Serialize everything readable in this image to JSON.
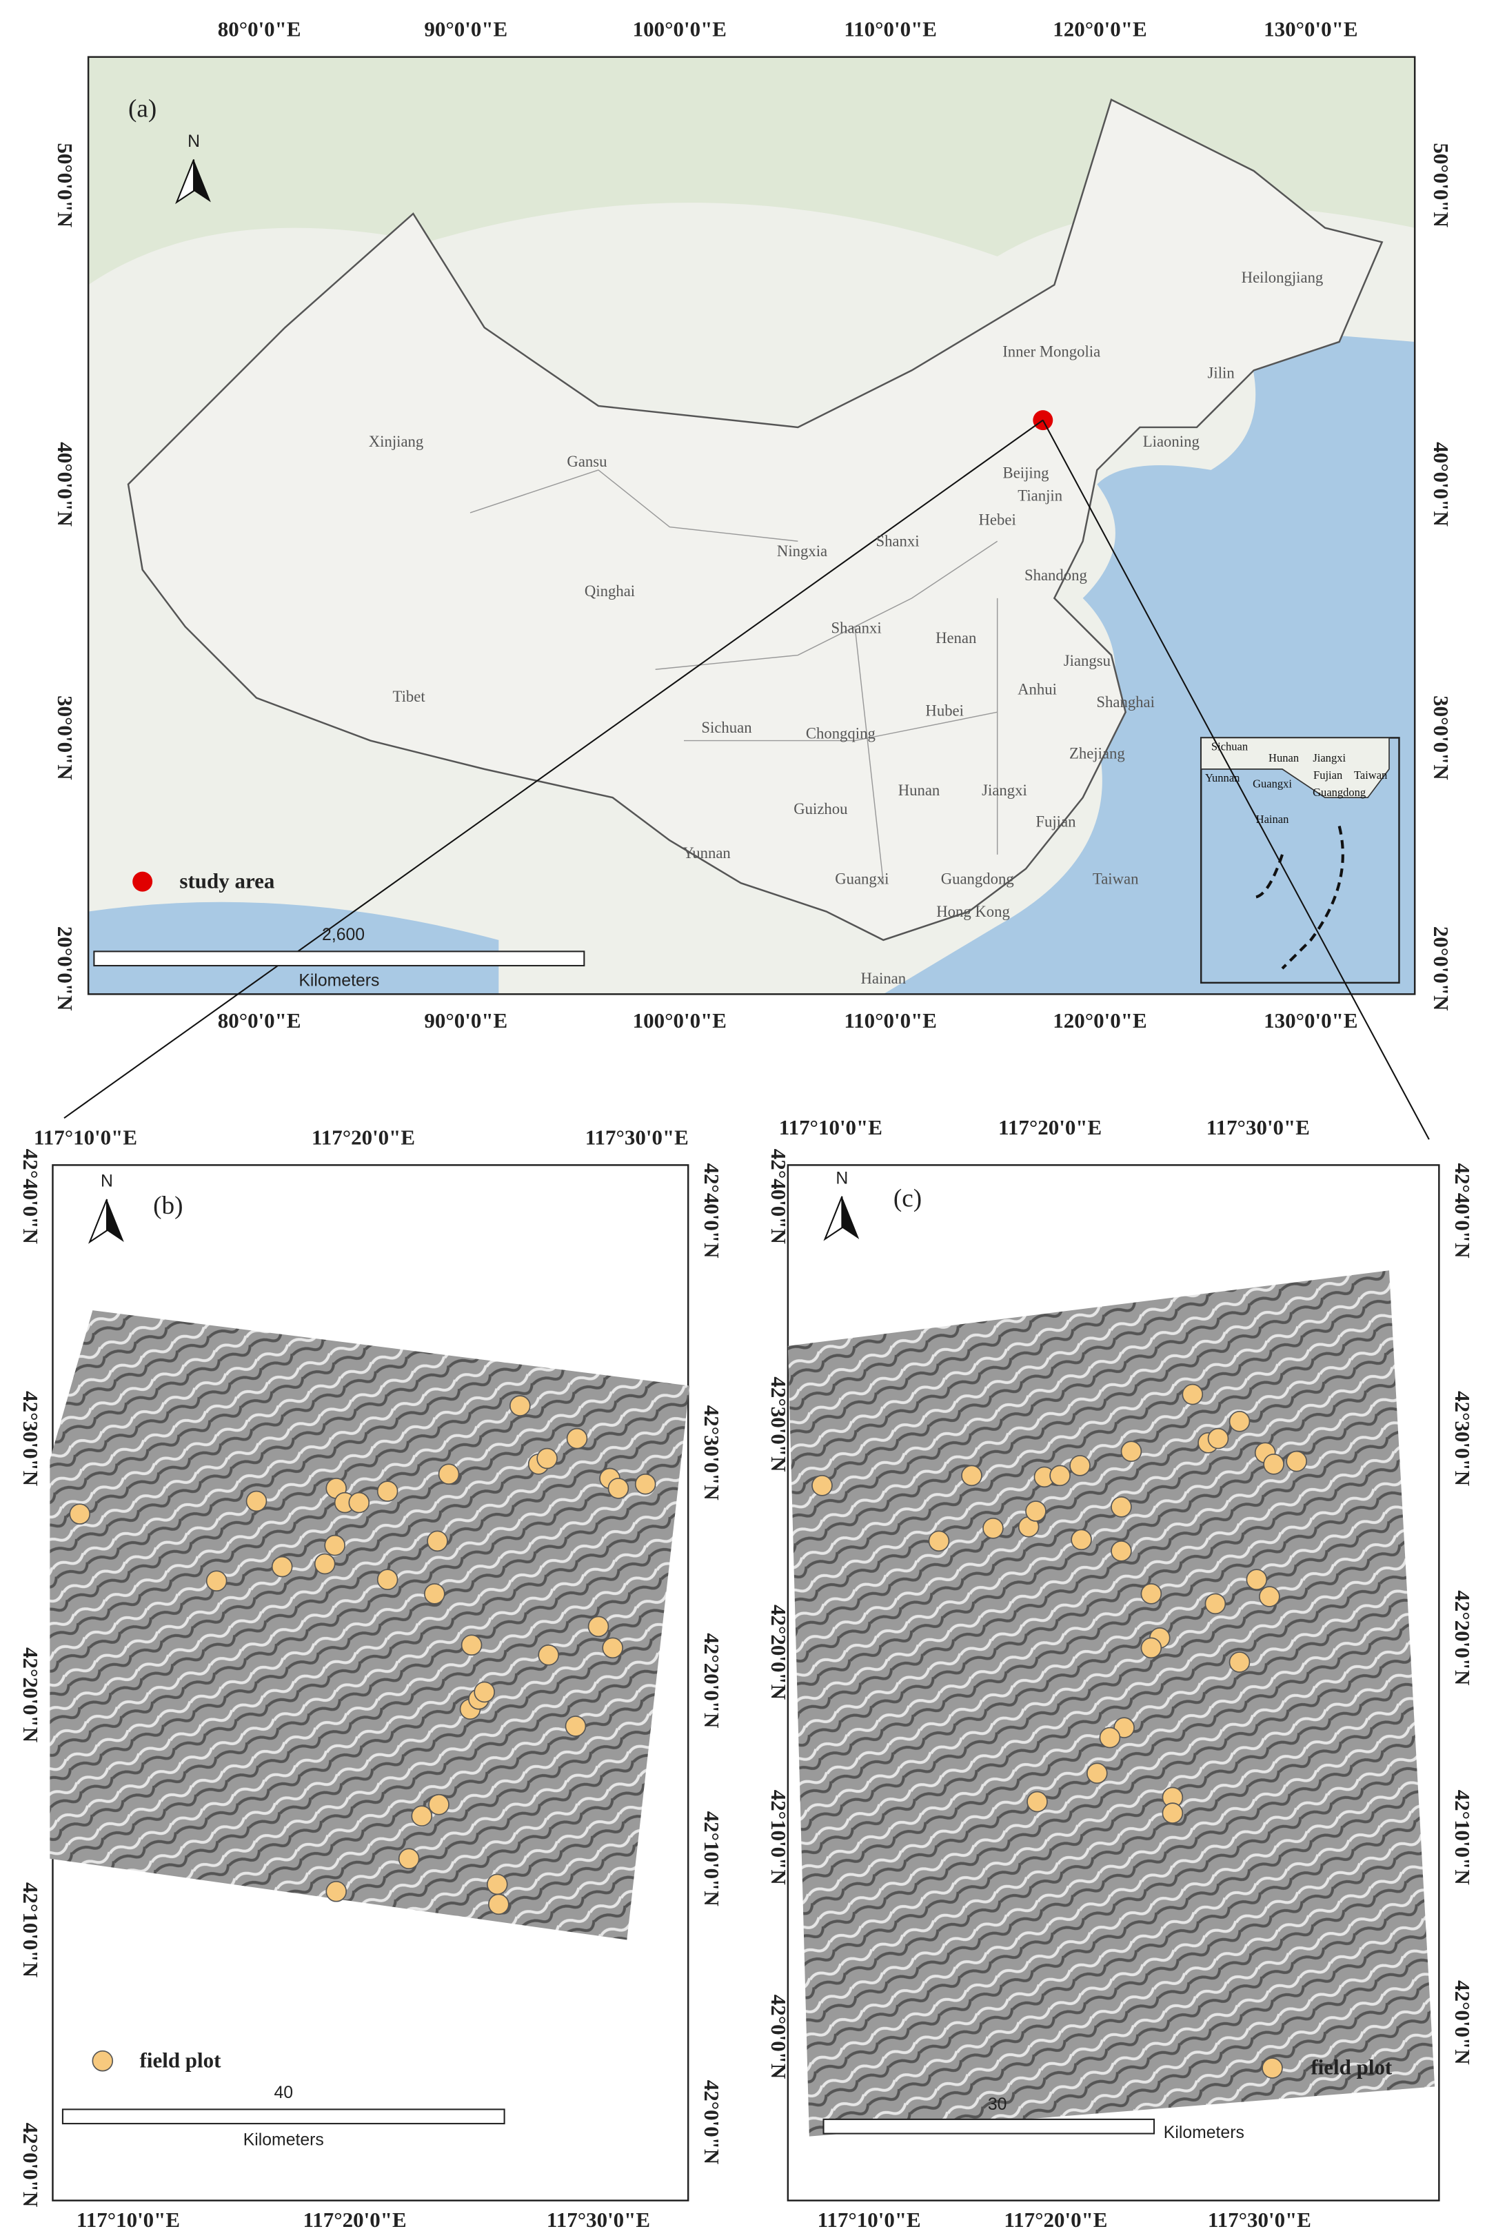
{
  "panels": [
    {
      "label": "(a)",
      "north": "N",
      "top_ticks": [
        "80°0'0\"E",
        "90°0'0\"E",
        "100°0'0\"E",
        "110°0'0\"E",
        "120°0'0\"E",
        "130°0'0\"E"
      ],
      "bottom_ticks": [
        "80°0'0\"E",
        "90°0'0\"E",
        "100°0'0\"E",
        "110°0'0\"E",
        "120°0'0\"E",
        "130°0'0\"E"
      ],
      "left_ticks": [
        "50°0'0\"N",
        "40°0'0\"N",
        "30°0'0\"N",
        "20°0'0\"N"
      ],
      "right_ticks": [
        "50°0'0\"N",
        "40°0'0\"N",
        "30°0'0\"N",
        "20°0'0\"N"
      ],
      "regions": [
        "Heilongjiang",
        "Inner Mongolia",
        "Jilin",
        "Liaoning",
        "Xinjiang",
        "Gansu",
        "Beijing",
        "Tianjin",
        "Hebei",
        "Ningxia",
        "Shanxi",
        "Qinghai",
        "Shandong",
        "Shaanxi",
        "Henan",
        "Jiangsu",
        "Tibet",
        "Anhui",
        "Shanghai",
        "Hubei",
        "Sichuan",
        "Chongqing",
        "Zhejiang",
        "Hunan",
        "Jiangxi",
        "Guizhou",
        "Fujian",
        "Yunnan",
        "Guangxi",
        "Guangdong",
        "Taiwan",
        "Hong Kong",
        "Hainan"
      ],
      "inset_regions": [
        "Sichuan",
        "Hunan",
        "Jiangxi",
        "Yunnan",
        "Guangxi",
        "Fujian",
        "Taiwan",
        "Guangdong",
        "Hainan"
      ],
      "legend": "study area",
      "scale_value": "2,600",
      "scale_unit": "Kilometers"
    },
    {
      "label": "(b)",
      "north": "N",
      "top_ticks": [
        "117°10'0\"E",
        "117°20'0\"E",
        "117°30'0\"E"
      ],
      "bottom_ticks": [
        "117°10'0\"E",
        "117°20'0\"E",
        "117°30'0\"E"
      ],
      "left_ticks": [
        "42°40'0\"N",
        "42°30'0\"N",
        "42°20'0\"N",
        "42°10'0\"N",
        "42°0'0\"N"
      ],
      "right_ticks": [
        "42°40'0\"N",
        "42°30'0\"N",
        "42°20'0\"N",
        "42°10'0\"N",
        "42°0'0\"N"
      ],
      "legend": "field plot",
      "scale_value": "40",
      "scale_unit": "Kilometers"
    },
    {
      "label": "(c)",
      "north": "N",
      "top_ticks": [
        "117°10'0\"E",
        "117°20'0\"E",
        "117°30'0\"E"
      ],
      "bottom_ticks": [
        "117°10'0\"E",
        "117°20'0\"E",
        "117°30'0\"E"
      ],
      "left_ticks": [
        "42°40'0\"N",
        "42°30'0\"N",
        "42°20'0\"N",
        "42°10'0\"N",
        "42°0'0\"N"
      ],
      "right_ticks": [
        "42°40'0\"N",
        "42°30'0\"N",
        "42°20'0\"N",
        "42°10'0\"N",
        "42°0'0\"N"
      ],
      "legend": "field plot",
      "scale_value": "30",
      "scale_unit": "Kilometers"
    }
  ]
}
